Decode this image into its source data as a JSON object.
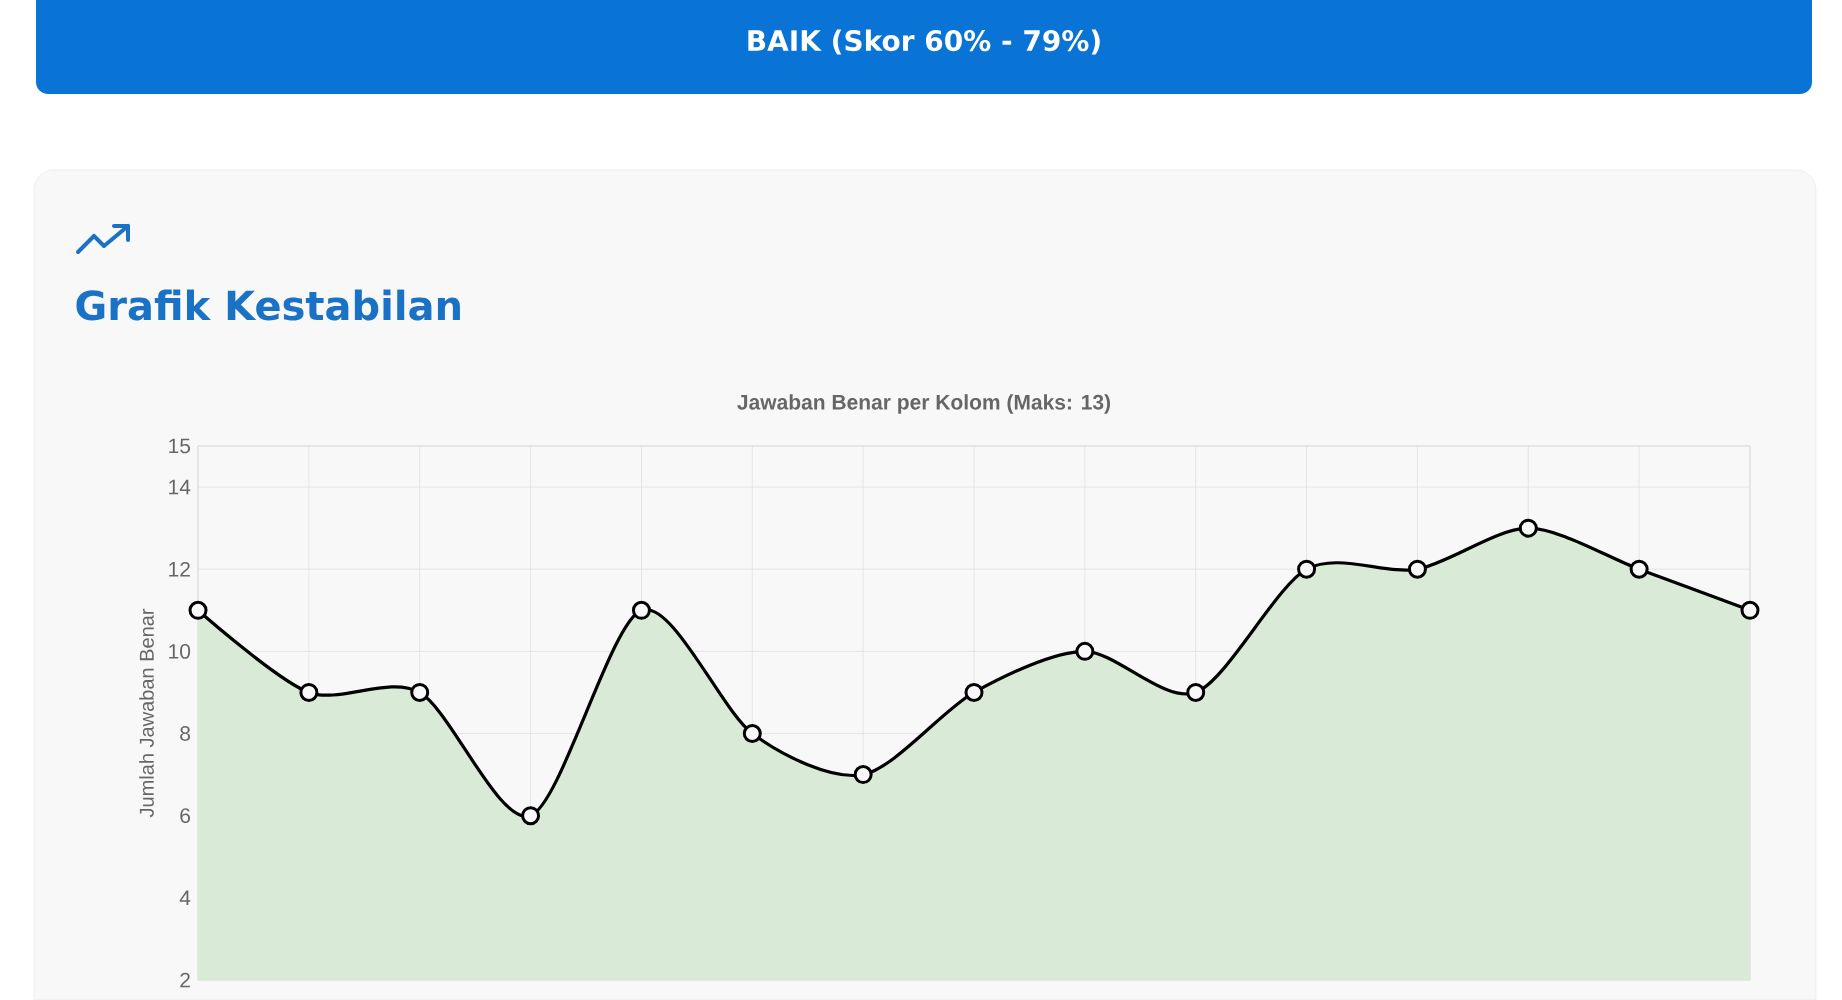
{
  "chart_data": {
    "type": "area",
    "title": "Jawaban Benar per Kolom (Maks: 13)",
    "annotations": [
      "BAIK (Skor 60% - 79%)",
      "Grafik Kestabilan"
    ],
    "ylabel": "Jumlah Jawaban Benar",
    "categories": [
      null,
      null,
      null,
      null,
      null,
      null,
      null,
      null,
      null,
      null,
      null,
      null,
      null,
      null,
      null
    ],
    "series": [
      {
        "color": "#d9ead7",
        "values": [
          11,
          9,
          9,
          6,
          11,
          8,
          7,
          9,
          10,
          9,
          12,
          12,
          13,
          12,
          11
        ]
      }
    ],
    "ylim": [
      2,
      15
    ],
    "yticks": [
      2,
      4,
      6,
      8,
      10,
      12,
      14,
      15
    ],
    "grid": true,
    "marker": "circle"
  }
}
